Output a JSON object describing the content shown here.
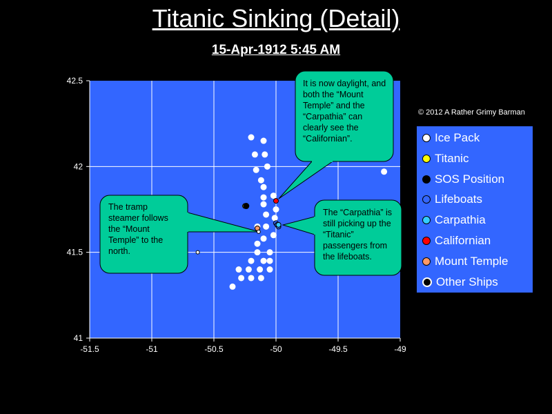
{
  "title": "Titanic Sinking (Detail)",
  "subtitle": "15-Apr-1912  5:45 AM",
  "copyright": "© 2012  A Rather Grimy Barman",
  "colors": {
    "plot_bg": "#3366ff",
    "callout_bg": "#00cc99",
    "ice_pack": "#ffffff",
    "titanic": "#ffff00",
    "sos": "#000000",
    "lifeboats": "#3366ff",
    "carpathia": "#33ccff",
    "californian": "#ff0000",
    "mount_temple": "#ff9966",
    "other_ships": "#ffffff"
  },
  "legend": [
    {
      "label": "Ice Pack",
      "color": "#ffffff"
    },
    {
      "label": "Titanic",
      "color": "#ffff00"
    },
    {
      "label": "SOS Position",
      "color": "#000000"
    },
    {
      "label": "Lifeboats",
      "color": "#3366ff"
    },
    {
      "label": "Carpathia",
      "color": "#33ccff"
    },
    {
      "label": "Californian",
      "color": "#ff0000"
    },
    {
      "label": "Mount Temple",
      "color": "#ff9966"
    },
    {
      "label": "Other Ships",
      "color": "#000000"
    }
  ],
  "callouts": [
    {
      "text": "It is now daylight, and both the “Mount Temple” and the “Carpathia” can clearly see the “Californian”."
    },
    {
      "text": "The tramp steamer follows the “Mount Temple” to the north."
    },
    {
      "text": "The “Carpathia” is still picking up the “Titanic” passengers from the lifeboats."
    }
  ],
  "chart_data": {
    "type": "scatter",
    "xlim": [
      -51.5,
      -49
    ],
    "ylim": [
      41,
      42.5
    ],
    "x_ticks": [
      "-51.5",
      "-51",
      "-50.5",
      "-50",
      "-49.5",
      "-49"
    ],
    "y_ticks": [
      "41",
      "41.5",
      "42",
      "42.5"
    ],
    "grid": true,
    "legend_position": "right",
    "series": [
      {
        "name": "Ice Pack",
        "points": [
          [
            -50.2,
            42.17
          ],
          [
            -50.1,
            42.15
          ],
          [
            -50.17,
            42.07
          ],
          [
            -50.09,
            42.07
          ],
          [
            -50.16,
            41.98
          ],
          [
            -50.07,
            42.0
          ],
          [
            -50.12,
            41.92
          ],
          [
            -50.1,
            41.88
          ],
          [
            -50.02,
            41.83
          ],
          [
            -50.1,
            41.82
          ],
          [
            -50.08,
            41.72
          ],
          [
            -50.0,
            41.75
          ],
          [
            -50.1,
            41.78
          ],
          [
            -50.15,
            41.65
          ],
          [
            -50.01,
            41.7
          ],
          [
            -50.08,
            41.65
          ],
          [
            -50.02,
            41.6
          ],
          [
            -50.1,
            41.58
          ],
          [
            -50.15,
            41.55
          ],
          [
            -50.05,
            41.5
          ],
          [
            -50.15,
            41.5
          ],
          [
            -50.2,
            41.45
          ],
          [
            -50.1,
            41.45
          ],
          [
            -50.05,
            41.45
          ],
          [
            -50.3,
            41.4
          ],
          [
            -50.22,
            41.4
          ],
          [
            -50.13,
            41.4
          ],
          [
            -50.05,
            41.4
          ],
          [
            -50.28,
            41.35
          ],
          [
            -50.2,
            41.35
          ],
          [
            -50.35,
            41.3
          ],
          [
            -50.12,
            41.35
          ],
          [
            -49.13,
            41.97
          ]
        ]
      },
      {
        "name": "Titanic",
        "points": [
          [
            -50.25,
            41.77
          ]
        ]
      },
      {
        "name": "SOS Position",
        "points": [
          [
            -50.24,
            41.77
          ]
        ]
      },
      {
        "name": "Lifeboats",
        "points": [
          [
            -50.0,
            41.67
          ],
          [
            -49.99,
            41.66
          ],
          [
            -49.98,
            41.65
          ]
        ]
      },
      {
        "name": "Carpathia",
        "points": [
          [
            -49.98,
            41.66
          ]
        ]
      },
      {
        "name": "Californian",
        "points": [
          [
            -50.0,
            41.8
          ]
        ]
      },
      {
        "name": "Mount Temple",
        "points": [
          [
            -50.15,
            41.64
          ]
        ]
      },
      {
        "name": "Other Ships",
        "points": [
          [
            -50.14,
            41.62
          ],
          [
            -50.63,
            41.5
          ]
        ]
      }
    ]
  }
}
